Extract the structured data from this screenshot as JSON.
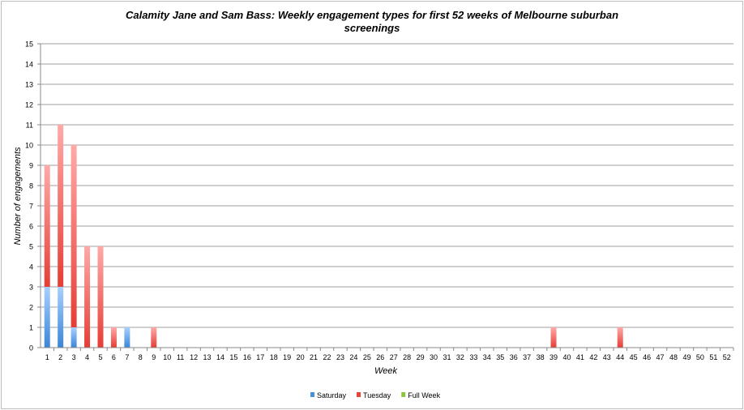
{
  "chart_data": {
    "type": "bar",
    "stacked": true,
    "title": "Calamity Jane and Sam Bass: Weekly engagement types for first 52 weeks of Melbourne suburban screenings",
    "xlabel": "Week",
    "ylabel": "Number of engagements",
    "ylim": [
      0,
      15
    ],
    "yticks": [
      0,
      1,
      2,
      3,
      4,
      5,
      6,
      7,
      8,
      9,
      10,
      11,
      12,
      13,
      14,
      15
    ],
    "grid": true,
    "legend_position": "bottom",
    "categories": [
      "1",
      "2",
      "3",
      "4",
      "5",
      "6",
      "7",
      "8",
      "9",
      "10",
      "11",
      "12",
      "13",
      "14",
      "15",
      "16",
      "17",
      "18",
      "19",
      "20",
      "21",
      "22",
      "23",
      "24",
      "25",
      "26",
      "27",
      "28",
      "29",
      "30",
      "31",
      "32",
      "33",
      "34",
      "35",
      "36",
      "37",
      "38",
      "39",
      "40",
      "41",
      "42",
      "43",
      "44",
      "45",
      "46",
      "47",
      "48",
      "49",
      "50",
      "51",
      "52"
    ],
    "series": [
      {
        "name": "Saturday",
        "color": "#4a90d9",
        "values": [
          3,
          3,
          1,
          0,
          0,
          0,
          1,
          0,
          0,
          0,
          0,
          0,
          0,
          0,
          0,
          0,
          0,
          0,
          0,
          0,
          0,
          0,
          0,
          0,
          0,
          0,
          0,
          0,
          0,
          0,
          0,
          0,
          0,
          0,
          0,
          0,
          0,
          0,
          0,
          0,
          0,
          0,
          0,
          0,
          0,
          0,
          0,
          0,
          0,
          0,
          0,
          0
        ]
      },
      {
        "name": "Tuesday",
        "color": "#e8433a",
        "values": [
          6,
          8,
          9,
          5,
          5,
          1,
          0,
          0,
          1,
          0,
          0,
          0,
          0,
          0,
          0,
          0,
          0,
          0,
          0,
          0,
          0,
          0,
          0,
          0,
          0,
          0,
          0,
          0,
          0,
          0,
          0,
          0,
          0,
          0,
          0,
          0,
          0,
          0,
          1,
          0,
          0,
          0,
          0,
          1,
          0,
          0,
          0,
          0,
          0,
          0,
          0,
          0
        ]
      },
      {
        "name": "Full Week",
        "color": "#8cc63f",
        "values": [
          0,
          0,
          0,
          0,
          0,
          0,
          0,
          0,
          0,
          0,
          0,
          0,
          0,
          0,
          0,
          0,
          0,
          0,
          0,
          0,
          0,
          0,
          0,
          0,
          0,
          0,
          0,
          0,
          0,
          0,
          0,
          0,
          0,
          0,
          0,
          0,
          0,
          0,
          0,
          0,
          0,
          0,
          0,
          0,
          0,
          0,
          0,
          0,
          0,
          0,
          0,
          0
        ]
      }
    ]
  }
}
